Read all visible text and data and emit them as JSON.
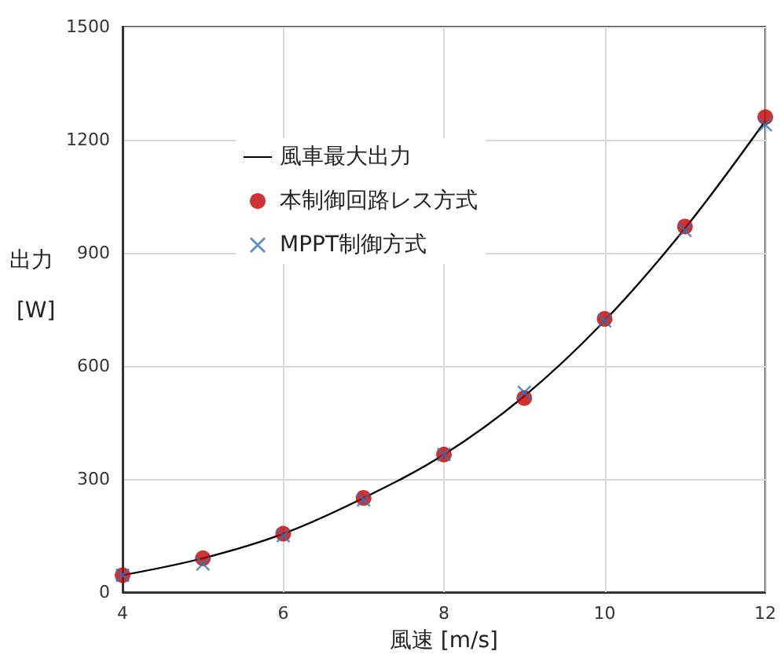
{
  "chart_data": {
    "type": "line",
    "xlabel": "風速 [m/s]",
    "ylabel": "出力 [W]",
    "xlim": [
      4,
      12
    ],
    "xticks": [
      4,
      6,
      8,
      10,
      12
    ],
    "ylim": [
      0,
      1500
    ],
    "yticks": [
      0,
      300,
      600,
      900,
      1200,
      1500
    ],
    "grid": true,
    "legend": "top left",
    "series": [
      {
        "name": "風車最大出力",
        "type": "line",
        "color": "#000000",
        "marker": "none",
        "line_style": "solid",
        "x": [
          4,
          5,
          6,
          7,
          8,
          9,
          10,
          11,
          12
        ],
        "values": [
          45,
          90,
          155,
          250,
          365,
          520,
          720,
          965,
          1250
        ]
      },
      {
        "name": "本制御回路レス方式",
        "type": "scatter",
        "color": "#c00000",
        "marker": "circle",
        "x": [
          4,
          5,
          6,
          7,
          8,
          9,
          10,
          11,
          12
        ],
        "values": [
          45,
          90,
          155,
          250,
          365,
          515,
          725,
          970,
          1260
        ]
      },
      {
        "name": "MPPT制御方式",
        "type": "scatter",
        "color": "#2e75b6",
        "marker": "cross",
        "x": [
          4,
          5,
          6,
          7,
          8,
          9,
          10,
          11,
          12
        ],
        "values": [
          45,
          75,
          150,
          245,
          365,
          530,
          720,
          960,
          1240
        ]
      }
    ]
  }
}
